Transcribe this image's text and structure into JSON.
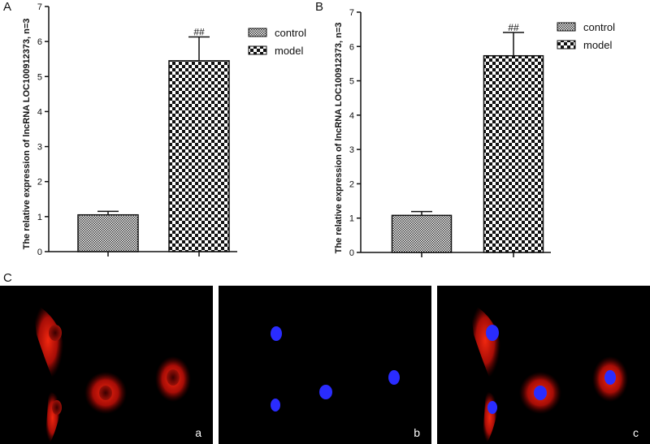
{
  "panels": {
    "A": "A",
    "B": "B",
    "C": "C",
    "a": "a",
    "b": "b",
    "c": "c"
  },
  "colors": {
    "nuclear_stain": "#2a2cff",
    "cytoplasm_stain": "#e0180f",
    "background": "#000000"
  },
  "chart_data": [
    {
      "type": "bar",
      "panel": "A",
      "categories": [
        "control",
        "model"
      ],
      "values": [
        1.05,
        5.45
      ],
      "errors": [
        0.1,
        0.68
      ],
      "significance": [
        "",
        "##"
      ],
      "ylabel": "The relative expression of lncRNA LOC100912373, n=3",
      "ylim": [
        0,
        7
      ],
      "yticks": [
        "0",
        "1",
        "2",
        "3",
        "4",
        "5",
        "6",
        "7"
      ],
      "legend": [
        "control",
        "model"
      ],
      "legend_position": "top-right",
      "grid": false
    },
    {
      "type": "bar",
      "panel": "B",
      "categories": [
        "control",
        "model"
      ],
      "values": [
        1.08,
        5.73
      ],
      "errors": [
        0.11,
        0.68
      ],
      "significance": [
        "",
        "##"
      ],
      "ylabel": "The relative expression of lncRNA LOC100912373, n=3",
      "ylim": [
        0,
        7
      ],
      "yticks": [
        "0",
        "1",
        "2",
        "3",
        "4",
        "5",
        "6",
        "7"
      ],
      "legend": [
        "control",
        "model"
      ],
      "legend_position": "top-right",
      "grid": false
    }
  ]
}
